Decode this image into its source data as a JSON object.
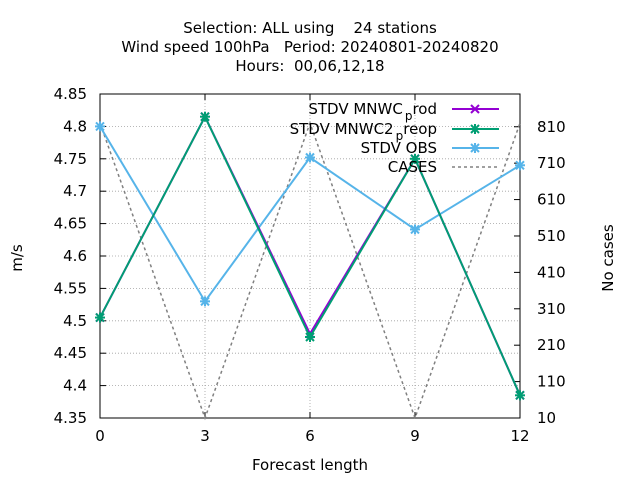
{
  "title_lines": [
    "Selection: ALL using    24 stations",
    "Wind speed 100hPa   Period: 20240801-20240820",
    "Hours:  00,06,12,18"
  ],
  "colors": {
    "mnwc_prod": "#9400d3",
    "mnwc2_preop": "#009e73",
    "obs": "#56b4e9",
    "cases": "#808080"
  },
  "chart_data": {
    "type": "line",
    "xlabel": "Forecast length",
    "ylabel": "m/s",
    "y2label": "No cases",
    "x": [
      0,
      3,
      6,
      9,
      12
    ],
    "xlim": [
      0,
      12
    ],
    "ylim": [
      4.35,
      4.85
    ],
    "y2lim": [
      10,
      900
    ],
    "xticks": [
      "0",
      "3",
      "6",
      "9",
      "12"
    ],
    "yticks": [
      "4.35",
      "4.4",
      "4.45",
      "4.5",
      "4.55",
      "4.6",
      "4.65",
      "4.7",
      "4.75",
      "4.8",
      "4.85"
    ],
    "y2ticks": [
      "10",
      "110",
      "210",
      "310",
      "410",
      "510",
      "610",
      "710",
      "810"
    ],
    "grid": true,
    "legend_position": "top-right",
    "series": [
      {
        "name_main": "STDV MNWC",
        "name_sub": "p",
        "name_tail": "rod",
        "axis": "y",
        "color_key": "mnwc_prod",
        "marker": "x",
        "dash": "",
        "values": [
          4.505,
          4.815,
          4.48,
          4.75,
          4.385
        ]
      },
      {
        "name_main": "STDV MNWC2",
        "name_sub": "p",
        "name_tail": "reop",
        "axis": "y",
        "color_key": "mnwc2_preop",
        "marker": "star",
        "dash": "",
        "values": [
          4.505,
          4.815,
          4.475,
          4.75,
          4.385
        ]
      },
      {
        "name_main": "STDV OBS",
        "name_sub": "",
        "name_tail": "",
        "axis": "y",
        "color_key": "obs",
        "marker": "star",
        "dash": "",
        "values": [
          4.8,
          4.53,
          4.752,
          4.641,
          4.74
        ]
      },
      {
        "name_main": "CASES",
        "name_sub": "",
        "name_tail": "",
        "axis": "y2",
        "color_key": "cases",
        "marker": "none",
        "dash": "3,3",
        "values": [
          820,
          10,
          820,
          10,
          820
        ]
      }
    ]
  }
}
